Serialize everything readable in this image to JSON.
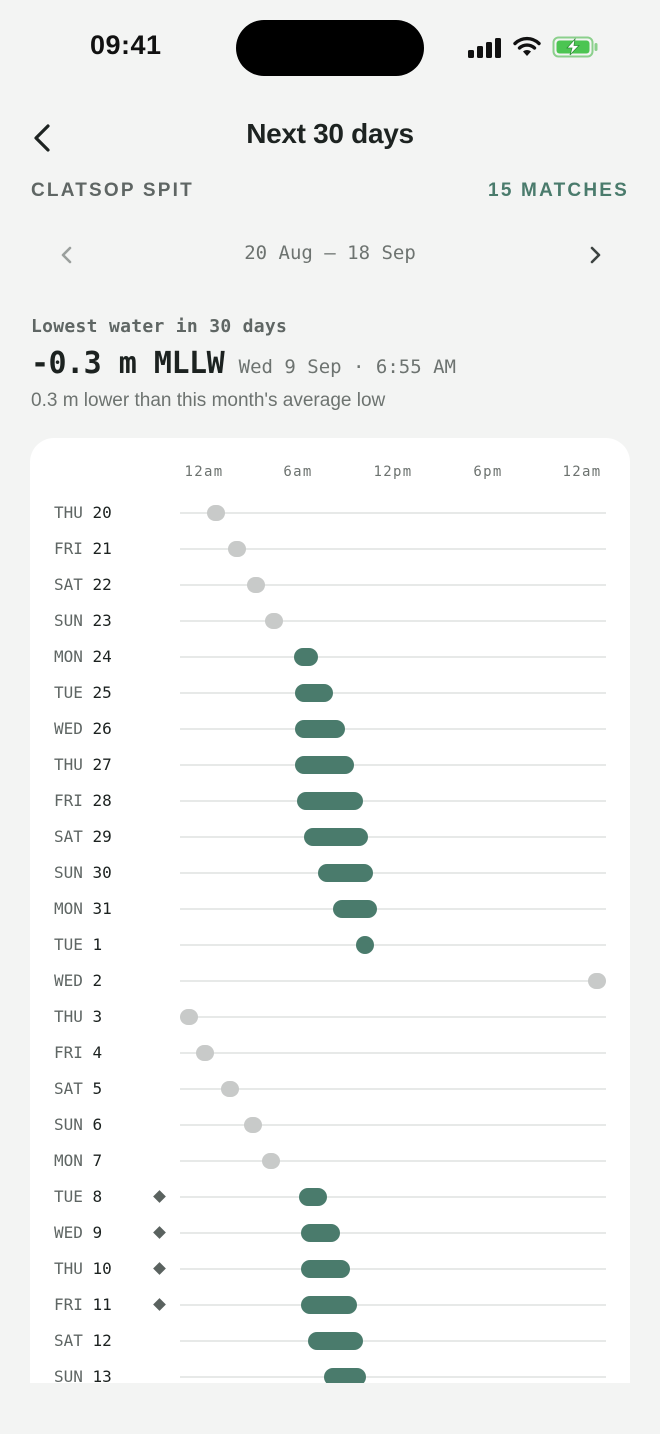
{
  "status_bar": {
    "time": "09:41"
  },
  "header": {
    "title": "Next 30 days"
  },
  "location": {
    "name": "CLATSOP SPIT",
    "matches": "15 MATCHES"
  },
  "range": {
    "text": "20 Aug – 18 Sep"
  },
  "lowest": {
    "label": "Lowest water in 30 days",
    "value": "-0.3 m MLLW",
    "when": "Wed 9 Sep · 6:55 AM",
    "note": "0.3 m lower than this month's average low"
  },
  "colors": {
    "match": "#4a7b6c",
    "non_match": "#c8cac9",
    "accent_text": "#4a7b6c"
  },
  "chart_data": {
    "type": "timeline",
    "x_axis": {
      "ticks": [
        "12am",
        "6am",
        "12pm",
        "6pm",
        "12am"
      ],
      "range_hours": [
        0,
        24
      ]
    },
    "note": "start/end in hours of day (0-24); match=true drawn as green bar, false as grey dot",
    "rows": [
      {
        "dow": "THU",
        "day": "20",
        "start": 1.6,
        "end": 2.4,
        "match": false,
        "marked": false
      },
      {
        "dow": "FRI",
        "day": "21",
        "start": 2.8,
        "end": 3.6,
        "match": false,
        "marked": false
      },
      {
        "dow": "SAT",
        "day": "22",
        "start": 3.9,
        "end": 4.7,
        "match": false,
        "marked": false
      },
      {
        "dow": "SUN",
        "day": "23",
        "start": 4.9,
        "end": 5.7,
        "match": false,
        "marked": false
      },
      {
        "dow": "MON",
        "day": "24",
        "start": 6.4,
        "end": 7.8,
        "match": true,
        "marked": false
      },
      {
        "dow": "TUE",
        "day": "25",
        "start": 6.5,
        "end": 8.6,
        "match": true,
        "marked": false
      },
      {
        "dow": "WED",
        "day": "26",
        "start": 6.5,
        "end": 9.3,
        "match": true,
        "marked": false
      },
      {
        "dow": "THU",
        "day": "27",
        "start": 6.5,
        "end": 9.8,
        "match": true,
        "marked": false
      },
      {
        "dow": "FRI",
        "day": "28",
        "start": 6.6,
        "end": 10.3,
        "match": true,
        "marked": false
      },
      {
        "dow": "SAT",
        "day": "29",
        "start": 7.0,
        "end": 10.6,
        "match": true,
        "marked": false
      },
      {
        "dow": "SUN",
        "day": "30",
        "start": 7.8,
        "end": 10.9,
        "match": true,
        "marked": false
      },
      {
        "dow": "MON",
        "day": "31",
        "start": 8.6,
        "end": 11.1,
        "match": true,
        "marked": false
      },
      {
        "dow": "TUE",
        "day": "1",
        "start": 9.9,
        "end": 10.9,
        "match": true,
        "marked": false
      },
      {
        "dow": "WED",
        "day": "2",
        "start": 23.3,
        "end": 24.0,
        "match": false,
        "marked": false
      },
      {
        "dow": "THU",
        "day": "3",
        "start": 0.0,
        "end": 1.0,
        "match": false,
        "marked": false
      },
      {
        "dow": "FRI",
        "day": "4",
        "start": 0.9,
        "end": 1.9,
        "match": false,
        "marked": false
      },
      {
        "dow": "SAT",
        "day": "5",
        "start": 2.3,
        "end": 3.3,
        "match": false,
        "marked": false
      },
      {
        "dow": "SUN",
        "day": "6",
        "start": 3.6,
        "end": 4.6,
        "match": false,
        "marked": false
      },
      {
        "dow": "MON",
        "day": "7",
        "start": 4.6,
        "end": 5.6,
        "match": false,
        "marked": false
      },
      {
        "dow": "TUE",
        "day": "8",
        "start": 6.7,
        "end": 8.3,
        "match": true,
        "marked": true
      },
      {
        "dow": "WED",
        "day": "9",
        "start": 6.8,
        "end": 9.0,
        "match": true,
        "marked": true
      },
      {
        "dow": "THU",
        "day": "10",
        "start": 6.8,
        "end": 9.6,
        "match": true,
        "marked": true
      },
      {
        "dow": "FRI",
        "day": "11",
        "start": 6.8,
        "end": 10.0,
        "match": true,
        "marked": true
      },
      {
        "dow": "SAT",
        "day": "12",
        "start": 7.2,
        "end": 10.3,
        "match": true,
        "marked": false
      },
      {
        "dow": "SUN",
        "day": "13",
        "start": 8.1,
        "end": 10.5,
        "match": true,
        "marked": false
      }
    ]
  }
}
